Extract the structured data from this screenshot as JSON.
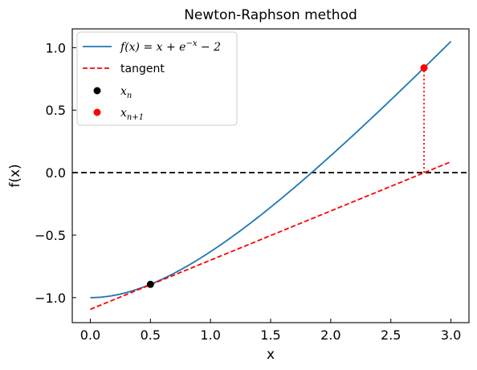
{
  "chart_data": {
    "type": "line",
    "title": "Newton-Raphson method",
    "xlabel": "x",
    "ylabel": "f(x)",
    "xlim": [
      -0.15,
      3.15
    ],
    "ylim": [
      -1.2,
      1.15
    ],
    "xticks": [
      0.0,
      0.5,
      1.0,
      1.5,
      2.0,
      2.5,
      3.0
    ],
    "xtick_labels": [
      "0.0",
      "0.5",
      "1.0",
      "1.5",
      "2.0",
      "2.5",
      "3.0"
    ],
    "yticks": [
      -1.0,
      -0.5,
      0.0,
      0.5,
      1.0
    ],
    "ytick_labels": [
      "−1.0",
      "−0.5",
      "0.0",
      "0.5",
      "1.0"
    ],
    "grid": false,
    "legend_position": "top-left",
    "series": [
      {
        "name": "f(x) = x + e⁻ˣ − 2",
        "kind": "function",
        "function": "x + exp(-x) - 2",
        "x_range": [
          0,
          3
        ],
        "color": "#1f77b4",
        "style": "solid"
      },
      {
        "name": "tangent",
        "kind": "line",
        "points": [
          [
            0,
            -1.0935
          ],
          [
            3,
            0.0871
          ]
        ],
        "color": "#ff0000",
        "style": "dashed"
      },
      {
        "name": "xₙ",
        "kind": "point",
        "points": [
          [
            0.5,
            -0.8935
          ]
        ],
        "color": "#000000"
      },
      {
        "name": "xₙ₊₁",
        "kind": "point",
        "points": [
          [
            2.776,
            0.8383
          ]
        ],
        "color": "#ff0000"
      }
    ],
    "annotations": [
      {
        "kind": "hline",
        "y": 0.0,
        "color": "#000000",
        "style": "dashed"
      },
      {
        "kind": "vsegment",
        "x": 2.776,
        "y0": 0.0,
        "y1": 0.8383,
        "color": "#ff0000",
        "style": "dotted"
      }
    ],
    "legend_labels": {
      "f_prefix": "f",
      "f_paren": "(x) = x + e",
      "f_sup": "−x",
      "f_suffix": " − 2",
      "tangent": "tangent",
      "xn_base": "x",
      "xn_sub": "n",
      "xn1_base": "x",
      "xn1_sub": "n+1"
    }
  }
}
